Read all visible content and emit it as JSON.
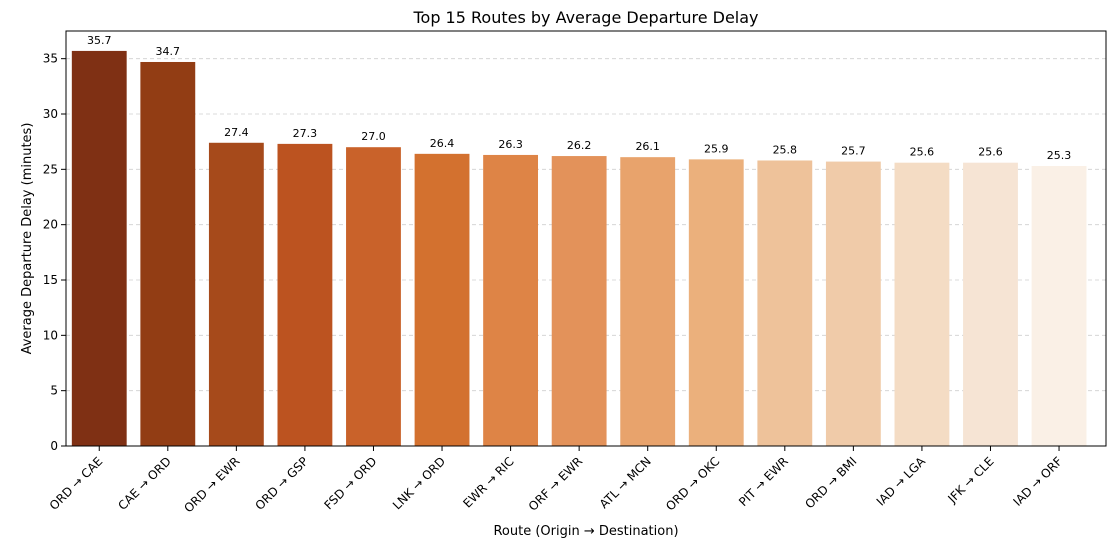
{
  "chart_data": {
    "type": "bar",
    "title": "Top 15 Routes by Average Departure Delay",
    "xlabel": "Route (Origin → Destination)",
    "ylabel": "Average Departure Delay (minutes)",
    "ylim": [
      0,
      37.5
    ],
    "yticks": [
      0,
      5,
      10,
      15,
      20,
      25,
      30,
      35
    ],
    "grid": "y-dashed",
    "categories": [
      "ORD → CAE",
      "CAE → ORD",
      "ORD → EWR",
      "ORD → GSP",
      "FSD → ORD",
      "LNK → ORD",
      "EWR → RIC",
      "ORF → EWR",
      "ATL → MCN",
      "ORD → OKC",
      "PIT → EWR",
      "ORD → BMI",
      "IAD → LGA",
      "JFK → CLE",
      "IAD → ORF"
    ],
    "values": [
      35.7,
      34.7,
      27.4,
      27.3,
      27.0,
      26.4,
      26.3,
      26.2,
      26.1,
      25.9,
      25.8,
      25.7,
      25.6,
      25.6,
      25.3
    ],
    "value_labels": [
      "35.7",
      "34.7",
      "27.4",
      "27.3",
      "27.0",
      "26.4",
      "26.3",
      "26.2",
      "26.1",
      "25.9",
      "25.8",
      "25.7",
      "25.6",
      "25.6",
      "25.3"
    ],
    "colors": [
      "#7f3014",
      "#923d14",
      "#a64a1b",
      "#bc5320",
      "#c9622a",
      "#d3712f",
      "#de8446",
      "#e3925a",
      "#e8a36c",
      "#ebb07c",
      "#eec29a",
      "#f0cba9",
      "#f4dcc4",
      "#f6e4d4",
      "#faf0e6"
    ]
  }
}
